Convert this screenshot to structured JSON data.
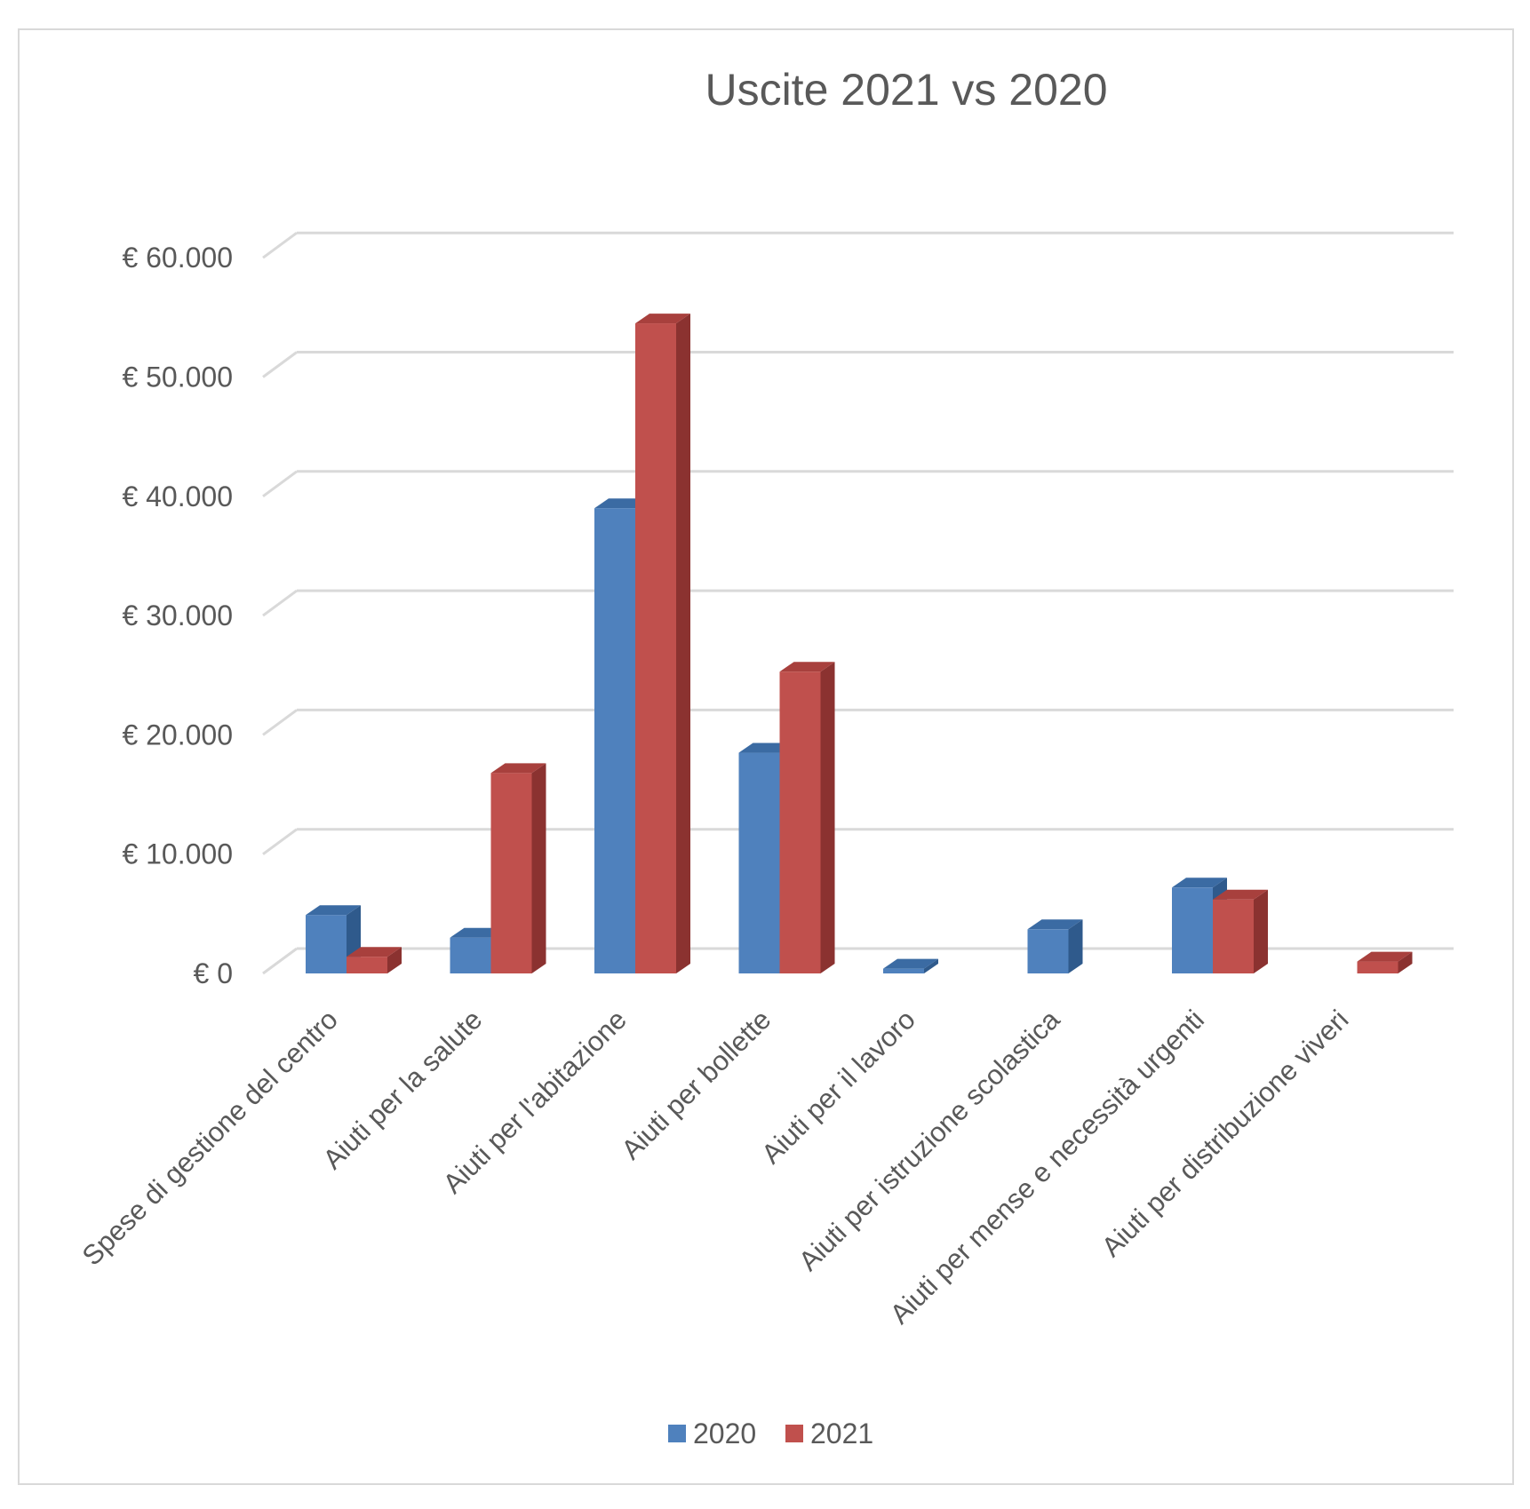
{
  "chart_data": {
    "type": "bar",
    "title": "Uscite 2021 vs 2020",
    "xlabel": "",
    "ylabel": "",
    "ylim": [
      0,
      60000
    ],
    "yticks": [
      0,
      10000,
      20000,
      30000,
      40000,
      50000,
      60000
    ],
    "ytick_labels": [
      "€ 0",
      "€ 10.000",
      "€ 20.000",
      "€ 30.000",
      "€ 40.000",
      "€ 50.000",
      "€ 60.000"
    ],
    "grid": true,
    "legend": "bottom",
    "categories": [
      "Spese di gestione del  centro",
      "Aiuti per la salute",
      "Aiuti per l'abitazione",
      "Aiuti per bollette",
      "Aiuti per il lavoro",
      "Aiuti per istruzione scolastica",
      "Aiuti per mense e necessità urgenti",
      "Aiuti per distribuzione viveri"
    ],
    "series": [
      {
        "name": "2020",
        "color": "#4f81bd",
        "top_color": "#3b6ba3",
        "side_color": "#2f5a8c",
        "values": [
          4900,
          3000,
          39000,
          18500,
          400,
          3700,
          7200,
          0
        ]
      },
      {
        "name": "2021",
        "color": "#c0504d",
        "top_color": "#a8403d",
        "side_color": "#8b3230",
        "values": [
          1400,
          16800,
          54500,
          25300,
          0,
          0,
          6200,
          1000
        ]
      }
    ]
  }
}
